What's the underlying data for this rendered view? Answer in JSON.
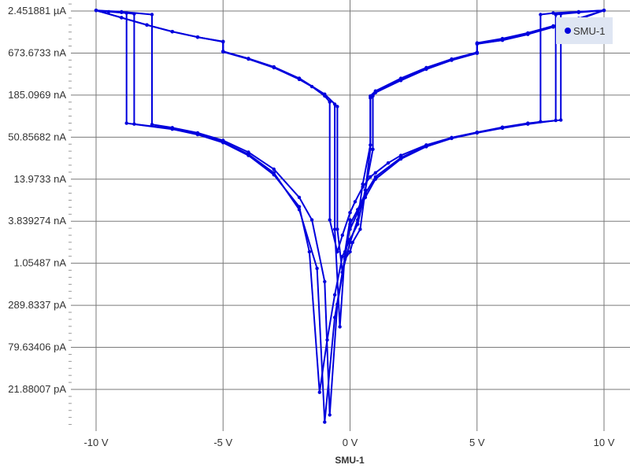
{
  "chart_data": {
    "type": "line",
    "xlabel": "SMU-1",
    "ylabel": "",
    "y_scale": "log",
    "xlim": [
      -10,
      10
    ],
    "ylim_amps": [
      7e-12,
      3e-06
    ],
    "grid": true,
    "legend_position": "top-right",
    "x_ticks": [
      {
        "value": -10,
        "label": "-10 V"
      },
      {
        "value": -5,
        "label": "-5 V"
      },
      {
        "value": 0,
        "label": "0 V"
      },
      {
        "value": 5,
        "label": "5 V"
      },
      {
        "value": 10,
        "label": "10 V"
      }
    ],
    "y_ticks": [
      {
        "value": 2.451881e-06,
        "label": "2.451881 µA"
      },
      {
        "value": 6.736733e-07,
        "label": "673.6733 nA"
      },
      {
        "value": 1.850969e-07,
        "label": "185.0969 nA"
      },
      {
        "value": 5.085682e-08,
        "label": "50.85682 nA"
      },
      {
        "value": 1.39733e-08,
        "label": "13.9733 nA"
      },
      {
        "value": 3.839274e-09,
        "label": "3.839274 nA"
      },
      {
        "value": 1.05487e-09,
        "label": "1.05487 nA"
      },
      {
        "value": 2.898337e-10,
        "label": "289.8337 pA"
      },
      {
        "value": 7.963406e-11,
        "label": "79.63406 pA"
      },
      {
        "value": 2.188007e-11,
        "label": "21.88007 pA"
      }
    ],
    "series": [
      {
        "name": "SMU-1",
        "color": "#0000dd",
        "cycles": [
          {
            "x": [
              0,
              0.2,
              0.5,
              0.8,
              1,
              1.5,
              2,
              3,
              4,
              5,
              6,
              7,
              7.5,
              7.5,
              8,
              9,
              10,
              9,
              8,
              7,
              6,
              5,
              5,
              4,
              3,
              2,
              1,
              0.8,
              0.8,
              0.6,
              0.4,
              0.1,
              0,
              -0.2,
              -0.5,
              -0.8,
              -1,
              -1.5,
              -2,
              -3,
              -4,
              -5,
              -6,
              -7,
              -7.8,
              -7.8,
              -9,
              -10,
              -9,
              -8,
              -7,
              -6,
              -5,
              -5,
              -4,
              -3,
              -2,
              -1.5,
              -1,
              -0.8,
              -0.8,
              -0.5,
              -0.3,
              0
            ],
            "y": [
              5e-09,
              7e-09,
              1.1e-08,
              1.5e-08,
              1.7e-08,
              2.3e-08,
              2.9e-08,
              4e-08,
              5e-08,
              5.9e-08,
              6.8e-08,
              7.7e-08,
              8.2e-08,
              2.2e-06,
              2.3e-06,
              2.4e-06,
              2.5e-06,
              1.9e-06,
              1.5e-06,
              1.2e-06,
              1e-06,
              9e-07,
              6.8e-07,
              5.5e-07,
              4.2e-07,
              3e-07,
              2e-07,
              1.7e-07,
              3.5e-08,
              1e-08,
              3e-09,
              2e-09,
              1.5e-09,
              1.2e-09,
              3e-10,
              1e-11,
              6e-10,
              4e-09,
              8e-09,
              1.9e-08,
              3.2e-08,
              4.6e-08,
              5.8e-08,
              6.8e-08,
              7.5e-08,
              2.2e-06,
              2.4e-06,
              2.5e-06,
              2e-06,
              1.6e-06,
              1.3e-06,
              1.1e-06,
              9.5e-07,
              7e-07,
              5.6e-07,
              4.3e-07,
              3e-07,
              2.4e-07,
              1.8e-07,
              1.5e-07,
              4e-09,
              1.5e-09,
              2.5e-09,
              5e-09
            ]
          },
          {
            "x": [
              0,
              0.3,
              0.6,
              1,
              2,
              3,
              4,
              5,
              6,
              7,
              8.1,
              8.1,
              9,
              10,
              9,
              8,
              7,
              6,
              5,
              5,
              4,
              3,
              2,
              1,
              0.8,
              0.8,
              0.5,
              0.3,
              0,
              -0.3,
              -0.6,
              -1,
              -1.3,
              -2,
              -3,
              -4,
              -5,
              -6,
              -7,
              -8.5,
              -8.5,
              -9,
              -10,
              -9,
              -8,
              -7,
              -6,
              -5,
              -5,
              -4,
              -3,
              -2,
              -1,
              -0.6,
              -0.6,
              -0.4,
              -0.2,
              0
            ],
            "y": [
              3e-09,
              5e-09,
              8e-09,
              1.4e-08,
              2.6e-08,
              3.8e-08,
              4.9e-08,
              5.8e-08,
              6.7e-08,
              7.6e-08,
              8.5e-08,
              2.2e-06,
              2.35e-06,
              2.5e-06,
              1.95e-06,
              1.55e-06,
              1.25e-06,
              1.05e-06,
              9.2e-07,
              6.9e-07,
              5.6e-07,
              4.3e-07,
              3.1e-07,
              2.1e-07,
              1.8e-07,
              4e-08,
              1.2e-08,
              4e-09,
              2e-09,
              8e-10,
              2e-10,
              8e-12,
              9e-10,
              5.5e-09,
              1.7e-08,
              3e-08,
              4.4e-08,
              5.6e-08,
              6.6e-08,
              7.6e-08,
              2.25e-06,
              2.35e-06,
              2.5e-06,
              2e-06,
              1.6e-06,
              1.3e-06,
              1.1e-06,
              9.6e-07,
              7.1e-07,
              5.7e-07,
              4.4e-07,
              3.1e-07,
              1.9e-07,
              1.4e-07,
              3e-09,
              1.5e-10,
              1.5e-09,
              4e-09
            ]
          },
          {
            "x": [
              0,
              0.3,
              0.6,
              1,
              2,
              3,
              4,
              5,
              6,
              7,
              8.3,
              8.3,
              9,
              10,
              9,
              8,
              7,
              6,
              5,
              5,
              4,
              3,
              2,
              1,
              0.9,
              0.9,
              0.6,
              0.3,
              0,
              -0.3,
              -0.6,
              -0.9,
              -1.2,
              -1.6,
              -2,
              -3,
              -4,
              -5,
              -6,
              -7,
              -8.8,
              -8.8,
              -9.5,
              -10,
              -9,
              -8,
              -7,
              -6,
              -5,
              -5,
              -4,
              -3,
              -2,
              -1,
              -0.5,
              -0.5,
              -0.3,
              -0.1,
              0
            ],
            "y": [
              3.5e-09,
              5.5e-09,
              9e-09,
              1.5e-08,
              2.7e-08,
              3.9e-08,
              5e-08,
              5.9e-08,
              6.9e-08,
              7.8e-08,
              8.6e-08,
              2.25e-06,
              2.38e-06,
              2.5e-06,
              1.9e-06,
              1.5e-06,
              1.2e-06,
              1e-06,
              8.9e-07,
              6.7e-07,
              5.4e-07,
              4.1e-07,
              2.9e-07,
              2e-07,
              1.8e-07,
              3.5e-08,
              1e-08,
              3.5e-09,
              2.2e-09,
              1.3e-09,
              4e-10,
              1e-10,
              2e-11,
              1.5e-09,
              6e-09,
              1.6e-08,
              2.9e-08,
              4.3e-08,
              5.5e-08,
              6.5e-08,
              7.8e-08,
              2.3e-06,
              2.4e-06,
              2.5e-06,
              2e-06,
              1.6e-06,
              1.3e-06,
              1.1e-06,
              9.6e-07,
              7.1e-07,
              5.7e-07,
              4.4e-07,
              3.1e-07,
              1.9e-07,
              1.3e-07,
              3e-09,
              8e-10,
              2e-09,
              3.5e-09
            ]
          }
        ]
      }
    ],
    "legend": {
      "label": "SMU-1"
    }
  }
}
